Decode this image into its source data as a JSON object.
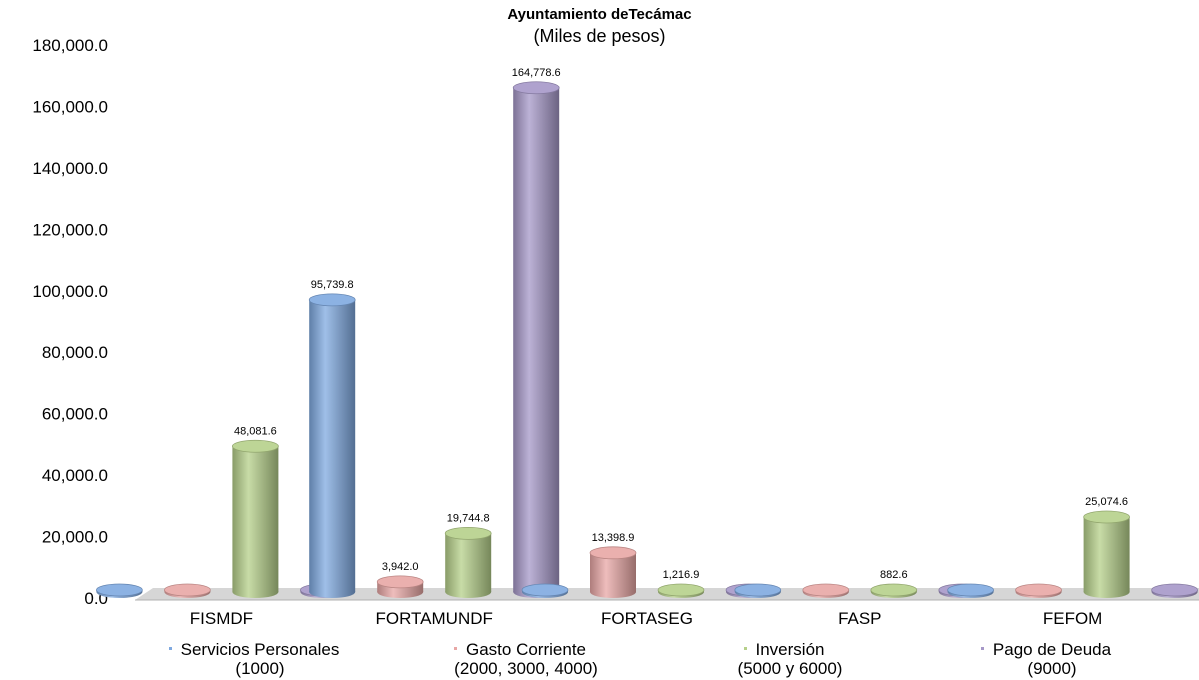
{
  "chart_data": {
    "type": "bar",
    "title": "Ayuntamiento deTecámac",
    "subtitle": "(Miles de pesos)",
    "categories": [
      "FISMDF",
      "FORTAMUNDF",
      "FORTASEG",
      "FASP",
      "FEFOM"
    ],
    "ylim": [
      0,
      180000
    ],
    "ytick_step": 20000,
    "ytick_labels": [
      "0.0",
      "20,000.0",
      "40,000.0",
      "60,000.0",
      "80,000.0",
      "100,000.0",
      "120,000.0",
      "140,000.0",
      "160,000.0",
      "180,000.0"
    ],
    "grid": false,
    "legend_position": "bottom",
    "series": [
      {
        "name": "Servicios Personales",
        "name_line2": "(1000)",
        "color": "#7fa9e0",
        "values": [
          0,
          95739.8,
          0,
          0,
          0
        ],
        "labels": [
          "",
          "95,739.8",
          "",
          "",
          ""
        ]
      },
      {
        "name": "Gasto Corriente",
        "name_line2": "(2000, 3000, 4000)",
        "color": "#e8a7a5",
        "values": [
          0,
          3942.0,
          13398.9,
          0,
          0
        ],
        "labels": [
          "",
          "3,942.0",
          "13,398.9",
          "",
          ""
        ]
      },
      {
        "name": "Inversión",
        "name_line2": "(5000 y 6000)",
        "color": "#b6d08a",
        "values": [
          48081.6,
          19744.8,
          1216.9,
          882.6,
          25074.6
        ],
        "labels": [
          "48,081.6",
          "19,744.8",
          "1,216.9",
          "882.6",
          "25,074.6"
        ]
      },
      {
        "name": "Pago de Deuda",
        "name_line2": "(9000)",
        "color": "#a698c8",
        "values": [
          0,
          164778.6,
          0,
          0,
          0
        ],
        "labels": [
          "",
          "164,778.6",
          "",
          "",
          ""
        ]
      }
    ]
  }
}
